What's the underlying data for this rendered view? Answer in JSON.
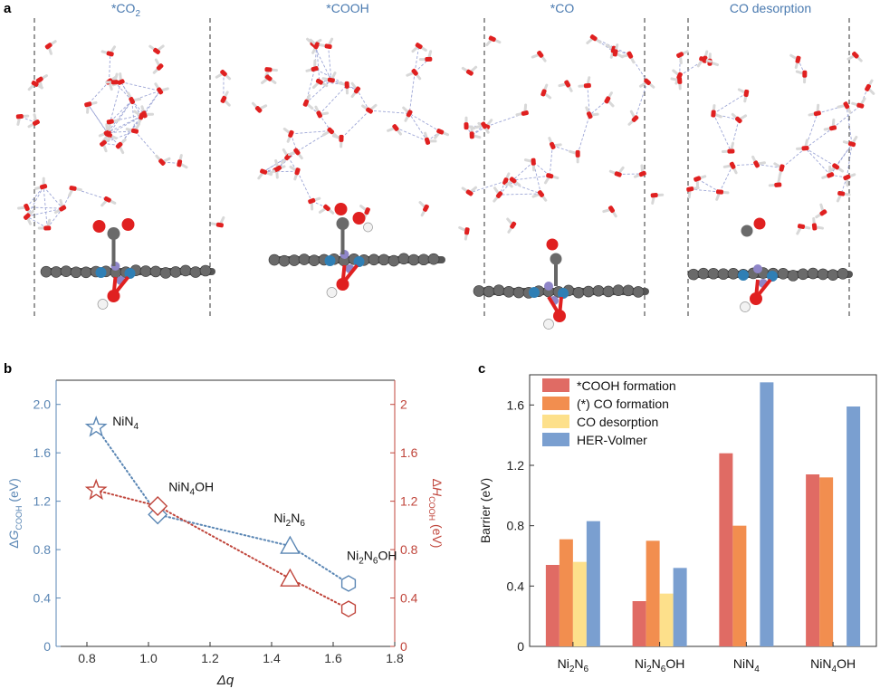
{
  "panel_labels": {
    "a": "a",
    "b": "b",
    "c": "c"
  },
  "panel_a": {
    "titles": [
      "*CO2",
      "*COOH",
      "*CO",
      "CO desorption"
    ],
    "title_color": "#4a7ab0"
  },
  "colors": {
    "blue": "#5a86b4",
    "red": "#c0453b",
    "bar_cooh": "#e06b64",
    "bar_co": "#f28e4f",
    "bar_desorb": "#fde08b",
    "bar_her": "#7a9fd0",
    "water_o": "#e02020",
    "carbon": "#6a6a6a",
    "nitrogen": "#8f86c8",
    "nickel": "#2f7fb5"
  },
  "chart_data": [
    {
      "id": "b",
      "type": "scatter",
      "xlabel": "Δq",
      "ylabel_left": "ΔG_COOH (eV)",
      "ylabel_right": "ΔH_COOH (eV)",
      "xlim": [
        0.7,
        1.8
      ],
      "xticks": [
        0.8,
        1.0,
        1.2,
        1.4,
        1.6,
        1.8
      ],
      "xtick_labels": [
        "0.8",
        "1.0",
        "1.2",
        "1.4",
        "1.6",
        "1.8"
      ],
      "ylim_left": [
        0,
        2.2
      ],
      "yticks_left": [
        0,
        0.4,
        0.8,
        1.2,
        1.6,
        2.0
      ],
      "ytick_labels_left": [
        "0",
        "0.4",
        "0.8",
        "1.2",
        "1.6",
        "2.0"
      ],
      "ylim_right": [
        0,
        2.2
      ],
      "yticks_right": [
        0,
        0.4,
        0.8,
        1.2,
        1.6,
        2.0
      ],
      "ytick_labels_right": [
        "0",
        "0.4",
        "0.8",
        "1.2",
        "1.6",
        "2"
      ],
      "series": [
        {
          "name": "ΔG_COOH",
          "axis": "left",
          "x": [
            0.83,
            1.03,
            1.46,
            1.65
          ],
          "y": [
            1.81,
            1.09,
            0.83,
            0.52
          ],
          "markers": [
            "star",
            "diamond",
            "triangle",
            "hexagon"
          ]
        },
        {
          "name": "ΔH_COOH",
          "axis": "right",
          "x": [
            0.83,
            1.03,
            1.46,
            1.65
          ],
          "y": [
            1.29,
            1.16,
            0.56,
            0.31
          ],
          "markers": [
            "star",
            "diamond",
            "triangle",
            "hexagon"
          ]
        }
      ],
      "point_labels": [
        {
          "base": "NiN",
          "sub": "4",
          "tail": ""
        },
        {
          "base": "NiN",
          "sub": "4",
          "tail": "OH"
        },
        {
          "base": "Ni",
          "sub": "2",
          "mid": "N",
          "sub2": "6",
          "tail": ""
        },
        {
          "base": "Ni",
          "sub": "2",
          "mid": "N",
          "sub2": "6",
          "tail": "OH"
        }
      ]
    },
    {
      "id": "c",
      "type": "bar",
      "ylabel": "Barrier (eV)",
      "ylim": [
        0,
        1.8
      ],
      "yticks": [
        0,
        0.4,
        0.8,
        1.2,
        1.6
      ],
      "ytick_labels": [
        "0",
        "0.4",
        "0.8",
        "1.2",
        "1.6"
      ],
      "categories": [
        {
          "base": "Ni",
          "sub": "2",
          "mid": "N",
          "sub2": "6",
          "tail": ""
        },
        {
          "base": "Ni",
          "sub": "2",
          "mid": "N",
          "sub2": "6",
          "tail": "OH"
        },
        {
          "base": "NiN",
          "sub": "4",
          "mid": "",
          "sub2": "",
          "tail": ""
        },
        {
          "base": "NiN",
          "sub": "4",
          "mid": "",
          "sub2": "",
          "tail": "OH"
        }
      ],
      "series": [
        {
          "name": "*COOH formation",
          "values": [
            0.54,
            0.3,
            1.28,
            1.14
          ]
        },
        {
          "name": "(*) CO formation",
          "values": [
            0.71,
            0.7,
            0.8,
            1.12
          ]
        },
        {
          "name": "CO desorption",
          "values": [
            0.56,
            0.35,
            null,
            null
          ]
        },
        {
          "name": "HER-Volmer",
          "values": [
            0.83,
            0.52,
            1.75,
            1.59
          ]
        }
      ],
      "legend_position": "top-left"
    }
  ]
}
